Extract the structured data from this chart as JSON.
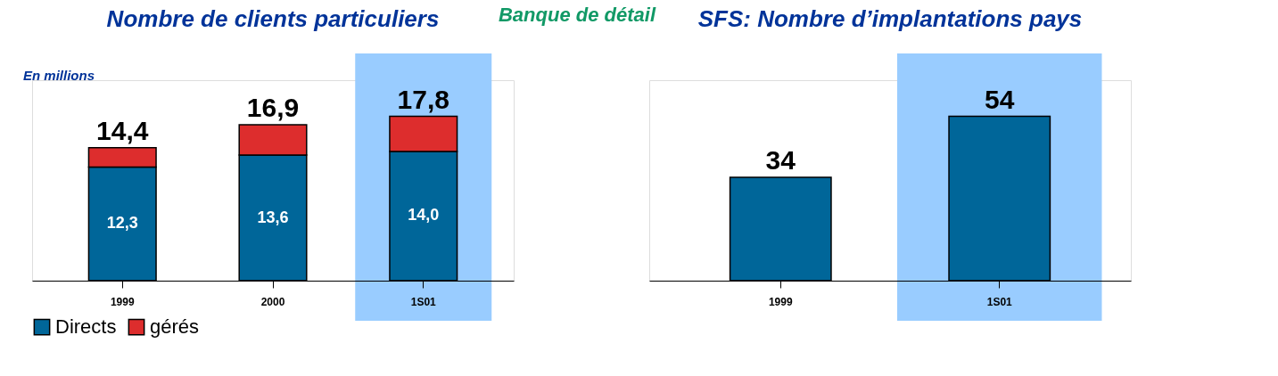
{
  "chart_data": [
    {
      "type": "bar",
      "title": "Nombre de clients particuliers",
      "stacked": true,
      "categories": [
        "1999",
        "2000",
        "1S01"
      ],
      "series": [
        {
          "name": "Directs",
          "color": "#006699",
          "values": [
            12.3,
            13.6,
            14.0
          ],
          "value_labels": [
            "12,3",
            "13,6",
            "14,0"
          ]
        },
        {
          "name": "gérés",
          "color": "#dd2d2d",
          "values": [
            2.1,
            3.3,
            3.8
          ]
        }
      ],
      "totals": [
        "14,4",
        "16,9",
        "17,8"
      ],
      "bands": [
        {
          "axis": "x",
          "from": "1S01",
          "to": "1S01",
          "color": "#99ccff"
        }
      ],
      "legend": "bottom left",
      "annotations": [
        "En millions",
        "Banque de détail"
      ]
    },
    {
      "type": "bar",
      "title": "SFS: Nombre d’implantations pays",
      "categories": [
        "1999",
        "1S01"
      ],
      "values": [
        34,
        54
      ],
      "color": "#006699",
      "data_labels": true,
      "bands": [
        {
          "axis": "x",
          "from": "1S01",
          "to": "1S01",
          "color": "#99ccff"
        }
      ]
    }
  ]
}
